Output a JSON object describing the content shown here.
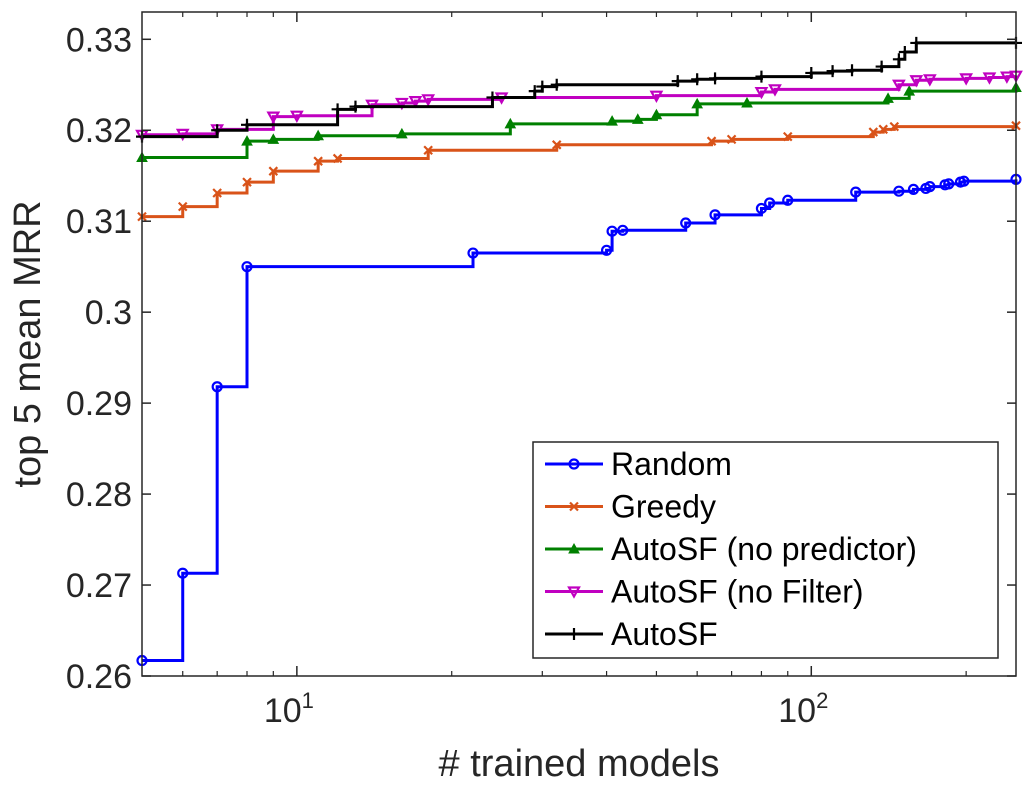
{
  "chart_data": {
    "type": "line",
    "title": "",
    "xlabel": "# trained models",
    "ylabel": "top 5 mean MRR",
    "xscale": "log",
    "xlim": [
      5,
      250
    ],
    "ylim": [
      0.26,
      0.333
    ],
    "grid": false,
    "legend_position": "bottom-right",
    "y_ticks": [
      0.26,
      0.27,
      0.28,
      0.29,
      0.3,
      0.31,
      0.32,
      0.33
    ],
    "y_tick_labels": [
      "0.26",
      "0.27",
      "0.28",
      "0.29",
      "0.3",
      "0.31",
      "0.32",
      "0.33"
    ],
    "x_ticks": [
      10,
      100
    ],
    "x_tick_bases": [
      "10",
      "10"
    ],
    "x_tick_exponents": [
      "1",
      "2"
    ],
    "series": [
      {
        "name": "Random",
        "color": "#0000ff",
        "marker": "circle",
        "x": [
          5,
          6,
          7,
          8,
          22,
          40,
          41,
          43,
          57,
          65,
          80,
          83,
          90,
          122,
          148,
          158,
          167,
          170,
          182,
          185,
          195,
          198,
          250
        ],
        "y": [
          0.2617,
          0.2713,
          0.2918,
          0.305,
          0.3065,
          0.3068,
          0.3089,
          0.309,
          0.3098,
          0.3107,
          0.3114,
          0.312,
          0.3123,
          0.3132,
          0.3133,
          0.3135,
          0.3136,
          0.3138,
          0.314,
          0.3141,
          0.3143,
          0.3144,
          0.3146
        ]
      },
      {
        "name": "Greedy",
        "color": "#d95319",
        "marker": "x",
        "x": [
          5,
          6,
          7,
          8,
          9,
          11,
          12,
          18,
          32,
          64,
          70,
          90,
          132,
          138,
          145,
          250
        ],
        "y": [
          0.3105,
          0.3116,
          0.3131,
          0.3143,
          0.3155,
          0.3166,
          0.3169,
          0.3178,
          0.3184,
          0.3188,
          0.319,
          0.3193,
          0.3198,
          0.3201,
          0.3204,
          0.3205
        ]
      },
      {
        "name": "AutoSF (no predictor)",
        "color": "#008000",
        "marker": "triangle-up",
        "x": [
          5,
          8,
          9,
          11,
          16,
          26,
          41,
          46,
          50,
          60,
          75,
          141,
          155,
          250
        ],
        "y": [
          0.317,
          0.3188,
          0.319,
          0.3194,
          0.3196,
          0.3207,
          0.321,
          0.3212,
          0.3217,
          0.3229,
          0.323,
          0.3235,
          0.3243,
          0.3247
        ]
      },
      {
        "name": "AutoSF (no Filter)",
        "color": "#c000c0",
        "marker": "triangle-down",
        "x": [
          5,
          6,
          7,
          9,
          10,
          14,
          16,
          17,
          18,
          25,
          50,
          80,
          85,
          148,
          160,
          170,
          200,
          222,
          240,
          250
        ],
        "y": [
          0.3195,
          0.3196,
          0.3201,
          0.3215,
          0.3216,
          0.3228,
          0.323,
          0.3232,
          0.3234,
          0.3236,
          0.3238,
          0.3242,
          0.3245,
          0.325,
          0.3255,
          0.3256,
          0.3257,
          0.3258,
          0.3259,
          0.326
        ]
      },
      {
        "name": "AutoSF",
        "color": "#000000",
        "marker": "plus",
        "x": [
          5,
          7,
          8,
          12,
          13,
          24,
          29,
          30,
          32,
          55,
          60,
          65,
          80,
          100,
          110,
          120,
          137,
          148,
          152,
          160,
          250
        ],
        "y": [
          0.3193,
          0.32,
          0.3206,
          0.3223,
          0.3226,
          0.3236,
          0.3243,
          0.3248,
          0.325,
          0.3254,
          0.3256,
          0.3257,
          0.3259,
          0.3263,
          0.3265,
          0.3266,
          0.327,
          0.3278,
          0.3286,
          0.3296,
          0.3296
        ]
      }
    ]
  }
}
